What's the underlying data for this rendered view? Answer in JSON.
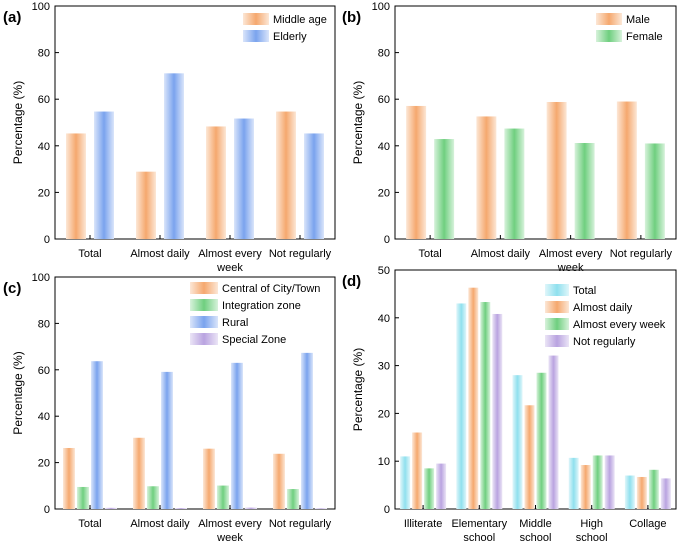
{
  "figure": {
    "description_panels": [
      "a",
      "b",
      "c",
      "d"
    ]
  },
  "colors": {
    "orange": "#f5a86e",
    "blue": "#7aa3ee",
    "green": "#6fcf7f",
    "purple": "#b9a3e0",
    "cyan": "#8fe0ee"
  },
  "chart_data": [
    {
      "id": "a",
      "panel_label": "(a)",
      "type": "bar",
      "categories": [
        "Total",
        "Almost daily",
        "Almost every week",
        "Not regularly"
      ],
      "category_lines": [
        [
          "Total"
        ],
        [
          "Almost daily"
        ],
        [
          "Almost every",
          "week"
        ],
        [
          "Not regularly"
        ]
      ],
      "series": [
        {
          "name": "Middle age",
          "color": "#f5a86e",
          "values": [
            45.3,
            28.9,
            48.3,
            54.7
          ]
        },
        {
          "name": "Elderly",
          "color": "#7aa3ee",
          "values": [
            54.7,
            71.1,
            51.7,
            45.3
          ]
        }
      ],
      "ylabel": "Percentage (%)",
      "ylim": [
        0,
        100
      ],
      "yticks": [
        0,
        20,
        40,
        60,
        80,
        100
      ],
      "legend": "top-right"
    },
    {
      "id": "b",
      "panel_label": "(b)",
      "type": "bar",
      "categories": [
        "Total",
        "Almost daily",
        "Almost every week",
        "Not regularly"
      ],
      "category_lines": [
        [
          "Total"
        ],
        [
          "Almost daily"
        ],
        [
          "Almost every",
          "week"
        ],
        [
          "Not regularly"
        ]
      ],
      "series": [
        {
          "name": "Male",
          "color": "#f5a86e",
          "values": [
            57.1,
            52.6,
            58.8,
            59.0
          ]
        },
        {
          "name": "Female",
          "color": "#6fcf7f",
          "values": [
            42.9,
            47.4,
            41.2,
            41.0
          ]
        }
      ],
      "ylabel": "Percentage (%)",
      "ylim": [
        0,
        100
      ],
      "yticks": [
        0,
        20,
        40,
        60,
        80,
        100
      ],
      "legend": "top-right"
    },
    {
      "id": "c",
      "panel_label": "(c)",
      "type": "bar",
      "categories": [
        "Total",
        "Almost daily",
        "Almost every week",
        "Not regularly"
      ],
      "category_lines": [
        [
          "Total"
        ],
        [
          "Almost daily"
        ],
        [
          "Almost every",
          "week"
        ],
        [
          "Not regularly"
        ]
      ],
      "series": [
        {
          "name": "Central of City/Town",
          "color": "#f5a86e",
          "values": [
            26.3,
            30.7,
            26.0,
            23.8
          ]
        },
        {
          "name": "Integration zone",
          "color": "#6fcf7f",
          "values": [
            9.5,
            9.8,
            10.1,
            8.6
          ]
        },
        {
          "name": "Rural",
          "color": "#7aa3ee",
          "values": [
            63.7,
            59.1,
            63.0,
            67.3
          ]
        },
        {
          "name": "Special Zone",
          "color": "#b9a3e0",
          "values": [
            0.5,
            0.4,
            0.6,
            0.3
          ]
        }
      ],
      "ylabel": "Percentage (%)",
      "ylim": [
        0,
        100
      ],
      "yticks": [
        0,
        20,
        40,
        60,
        80,
        100
      ],
      "legend": "top-left"
    },
    {
      "id": "d",
      "panel_label": "(d)",
      "type": "bar",
      "categories": [
        "Illiterate",
        "Elementary school",
        "Middle school",
        "High school",
        "Collage"
      ],
      "category_lines": [
        [
          "Illiterate"
        ],
        [
          "Elementary",
          "school"
        ],
        [
          "Middle",
          "school"
        ],
        [
          "High",
          "school"
        ],
        [
          "Collage"
        ]
      ],
      "series": [
        {
          "name": "Total",
          "color": "#8fe0ee",
          "values": [
            11.0,
            43.0,
            28.0,
            10.7,
            7.0
          ]
        },
        {
          "name": "Almost daily",
          "color": "#f5a86e",
          "values": [
            16.0,
            46.3,
            21.7,
            9.2,
            6.7
          ]
        },
        {
          "name": "Almost every week",
          "color": "#6fcf7f",
          "values": [
            8.5,
            43.3,
            28.5,
            11.2,
            8.2
          ]
        },
        {
          "name": "Not regularly",
          "color": "#b9a3e0",
          "values": [
            9.5,
            40.8,
            32.1,
            11.2,
            6.4
          ]
        }
      ],
      "ylabel": "Percentage (%)",
      "ylim": [
        0,
        50
      ],
      "yticks": [
        0,
        10,
        20,
        30,
        40,
        50
      ],
      "legend": "top-right"
    }
  ]
}
